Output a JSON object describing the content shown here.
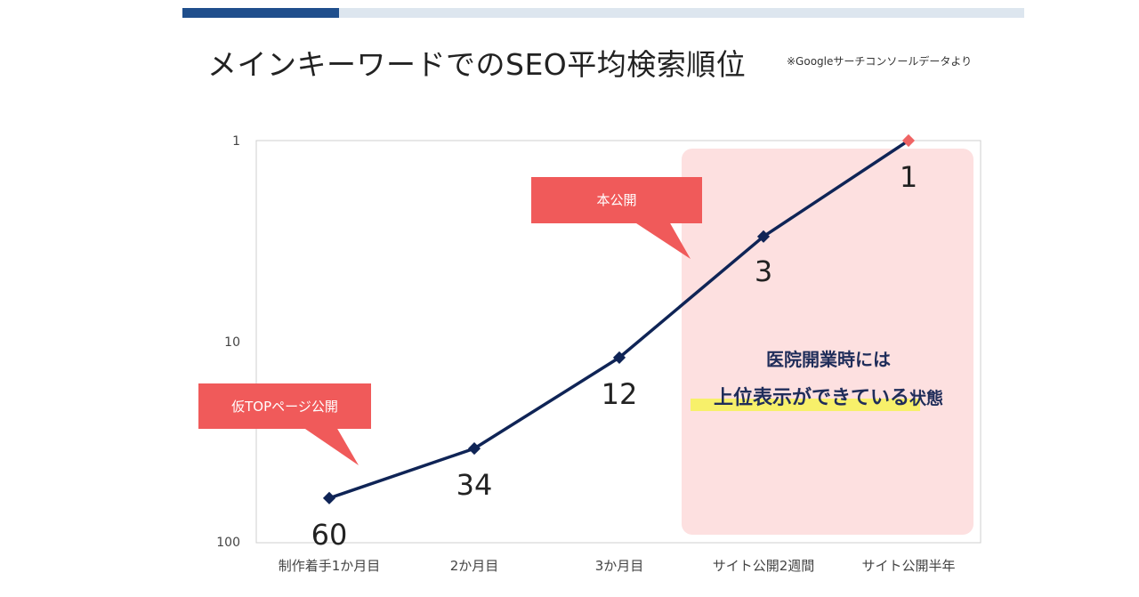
{
  "header": {
    "title": "メインキーワードでのSEO平均検索順位",
    "note": "※Googleサーチコンソールデータより",
    "progress_fraction": 0.186
  },
  "chart_data": {
    "type": "line",
    "title": "メインキーワードでのSEO平均検索順位",
    "categories": [
      "制作着手1か月目",
      "2か月目",
      "3か月目",
      "サイト公開2週間",
      "サイト公開半年"
    ],
    "series": [
      {
        "values": [
          60,
          34,
          12,
          3,
          1
        ]
      }
    ],
    "data_labels": [
      "60",
      "34",
      "12",
      "3",
      "1"
    ],
    "y_scale": "log",
    "y_reversed": true,
    "ylim": [
      100,
      1
    ],
    "y_ticks": [
      "1",
      "10",
      "100"
    ],
    "grid": false,
    "annotations": {
      "callout_1": "仮TOPページ公開",
      "callout_2": "本公開",
      "highlight_line1": "医院開業時には",
      "highlight_line2_emph": "上位表示ができている",
      "highlight_line2_rest": "状態"
    }
  },
  "colors": {
    "line": "#0f2456",
    "last_marker": "#ef6464",
    "callout": "#f05a5a",
    "highlight_bg": "#fde0e0",
    "underline": "#f7f06a",
    "accent": "#1f4e8c"
  }
}
